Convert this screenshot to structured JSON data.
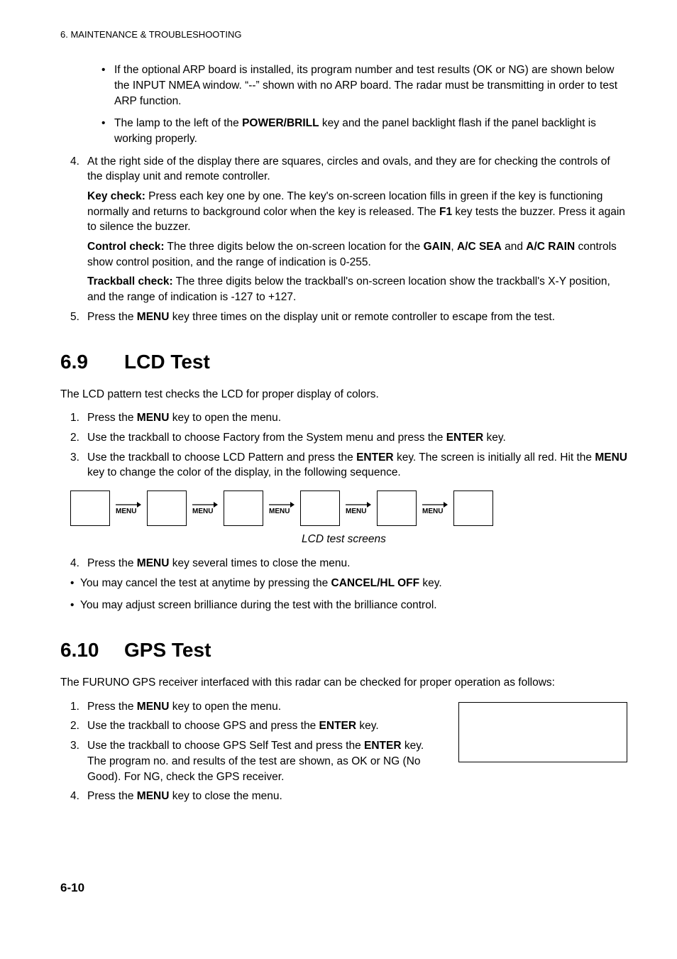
{
  "header": {
    "chapter": "6. MAINTENANCE & TROUBLESHOOTING"
  },
  "sec_cont": {
    "b1": "If the optional ARP board is installed, its program number and test results (OK or NG) are shown below the INPUT NMEA window. “--” shown with no ARP board. The radar must be transmitting in order to test ARP function.",
    "b2_a": "The lamp to the left of the ",
    "b2_bold": "POWER/BRILL",
    "b2_b": " key and the panel backlight flash if the panel backlight is working properly.",
    "n4": "At the right side of the display there are squares, circles and ovals, and they are for checking the controls of the display unit and remote controller.",
    "kc_label": "Key check:",
    "kc_a": " Press each key one by one. The key's on-screen location fills in green if the key is functioning normally and returns to background color when the key is released. The ",
    "kc_f1": "F1",
    "kc_b": " key tests the buzzer. Press it again to silence the buzzer.",
    "cc_label": "Control check:",
    "cc_a": " The three digits below the on-screen location for the ",
    "cc_gain": "GAIN",
    "cc_sep1": ", ",
    "cc_sea": "A/C SEA",
    "cc_sep2": " and ",
    "cc_rain": "A/C RAIN",
    "cc_b": " controls show control position, and the range of indication is 0-255.",
    "tc_label": "Trackball check:",
    "tc_a": " The three digits below the trackball's on-screen location show the trackball's X-Y position, and the range of indication is -127 to +127.",
    "n5_a": "Press the ",
    "n5_menu": "MENU",
    "n5_b": " key three times on the display unit or remote controller to escape from the test."
  },
  "sec69": {
    "num": "6.9",
    "title": "LCD Test",
    "intro": "The LCD pattern test checks the LCD for proper display of colors.",
    "s1_a": "Press the ",
    "s1_menu": "MENU",
    "s1_b": " key to open the menu.",
    "s2_a": "Use the trackball to choose Factory from the System menu and press the ",
    "s2_enter": "ENTER",
    "s2_b": " key.",
    "s3_a": "Use the trackball to choose LCD Pattern and press the ",
    "s3_enter": "ENTER",
    "s3_b": " key. The screen is initially all red. Hit the ",
    "s3_menu": "MENU",
    "s3_c": " key to change the color of the display, in the following sequence.",
    "lcd": {
      "label": "MENU",
      "colors": [
        "#ffffff",
        "#ffffff",
        "#ffffff",
        "#ffffff",
        "#ffffff",
        "#ffffff"
      ]
    },
    "caption": "LCD test screens",
    "s4_a": "Press the ",
    "s4_menu": "MENU",
    "s4_b": " key several times to close the menu.",
    "note1_a": "You may cancel the test at anytime by pressing the ",
    "note1_bold": "CANCEL/HL OFF",
    "note1_b": " key.",
    "note2": "You may adjust screen brilliance during the test with the brilliance control."
  },
  "sec610": {
    "num": "6.10",
    "title": "GPS Test",
    "intro": "The FURUNO GPS receiver interfaced with this radar can be checked for proper operation as follows:",
    "s1_a": "Press the ",
    "s1_menu": "MENU",
    "s1_b": " key to open the menu.",
    "s2_a": "Use the trackball to choose GPS and press the ",
    "s2_enter": "ENTER",
    "s2_b": " key.",
    "s3_a": "Use the trackball to choose GPS Self Test and press the ",
    "s3_enter": "ENTER",
    "s3_b": " key. The program no. and results of the test are shown, as OK or NG (No Good). For NG, check the GPS receiver.",
    "s4_a": "Press the ",
    "s4_menu": "MENU",
    "s4_b": " key to close the menu."
  },
  "page": "6-10",
  "nums": {
    "n4": "4.",
    "n5": "5.",
    "n1": "1.",
    "n2": "2.",
    "n3": "3."
  }
}
